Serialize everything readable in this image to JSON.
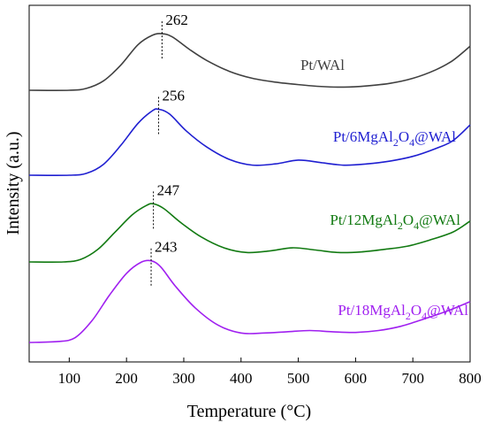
{
  "chart_data": {
    "type": "line",
    "xlabel": "Temperature (°C)",
    "ylabel": "Intensity (a.u.)",
    "xlim": [
      30,
      800
    ],
    "xticks": [
      100,
      200,
      300,
      400,
      500,
      600,
      700,
      800
    ],
    "grid": false,
    "y_tick_labels": false,
    "series": [
      {
        "name": "Pt/WAl",
        "label_parts": [
          "Pt/WAl"
        ],
        "color": "#404040",
        "peak_temperature": 262,
        "peak_label": "262",
        "x": [
          30,
          100,
          130,
          160,
          190,
          220,
          245,
          262,
          280,
          310,
          340,
          380,
          420,
          460,
          500,
          540,
          580,
          620,
          660,
          700,
          740,
          770,
          800
        ],
        "y": [
          0,
          0,
          0.6,
          3,
          8,
          14.5,
          17.5,
          18,
          17,
          13,
          9.5,
          6,
          3.8,
          2.6,
          1.8,
          1.2,
          1.0,
          1.4,
          2.2,
          3.8,
          6.5,
          9.5,
          14
        ]
      },
      {
        "name": "Pt/6MgAl2O4@WAl",
        "label_parts": [
          "Pt/6MgAl",
          "2",
          "O",
          "4",
          "@WAl"
        ],
        "color": "#1f1fd1",
        "peak_temperature": 256,
        "peak_label": "256",
        "x": [
          30,
          100,
          130,
          160,
          190,
          220,
          245,
          256,
          275,
          305,
          340,
          380,
          420,
          460,
          500,
          540,
          580,
          620,
          660,
          700,
          740,
          770,
          800
        ],
        "y": [
          0,
          0,
          0.6,
          3.5,
          9.5,
          16.5,
          20.5,
          21,
          19.5,
          14,
          9,
          5,
          3.2,
          3.6,
          4.8,
          4.0,
          3.2,
          3.6,
          4.5,
          6.0,
          8.5,
          11,
          16
        ]
      },
      {
        "name": "Pt/12MgAl2O4@WAl",
        "label_parts": [
          "Pt/12MgAl",
          "2",
          "O",
          "4",
          "@WAl"
        ],
        "color": "#127a12",
        "peak_temperature": 247,
        "peak_label": "247",
        "x": [
          30,
          90,
          120,
          150,
          180,
          210,
          235,
          247,
          265,
          295,
          330,
          370,
          410,
          450,
          490,
          530,
          570,
          610,
          650,
          690,
          730,
          770,
          800
        ],
        "y": [
          0,
          0,
          0.8,
          4,
          9.5,
          15,
          18,
          18.5,
          17,
          12.5,
          8,
          4.5,
          3.0,
          3.5,
          4.5,
          3.8,
          3.0,
          3.2,
          4.0,
          5.0,
          7.0,
          9.5,
          13
        ]
      },
      {
        "name": "Pt/18MgAl2O4@WAl",
        "label_parts": [
          "Pt/18MgAl",
          "2",
          "O",
          "4",
          "@WAl"
        ],
        "color": "#a020f0",
        "peak_temperature": 243,
        "peak_label": "243",
        "x": [
          30,
          80,
          110,
          140,
          170,
          200,
          225,
          243,
          260,
          285,
          320,
          360,
          400,
          440,
          480,
          520,
          560,
          600,
          640,
          680,
          720,
          760,
          800
        ],
        "y": [
          0,
          0.3,
          1.5,
          7,
          15,
          22,
          25.5,
          26,
          24,
          18,
          11,
          5.5,
          3.0,
          3.0,
          3.4,
          3.8,
          3.4,
          3.2,
          3.8,
          5.2,
          7.5,
          10,
          13
        ]
      }
    ]
  }
}
